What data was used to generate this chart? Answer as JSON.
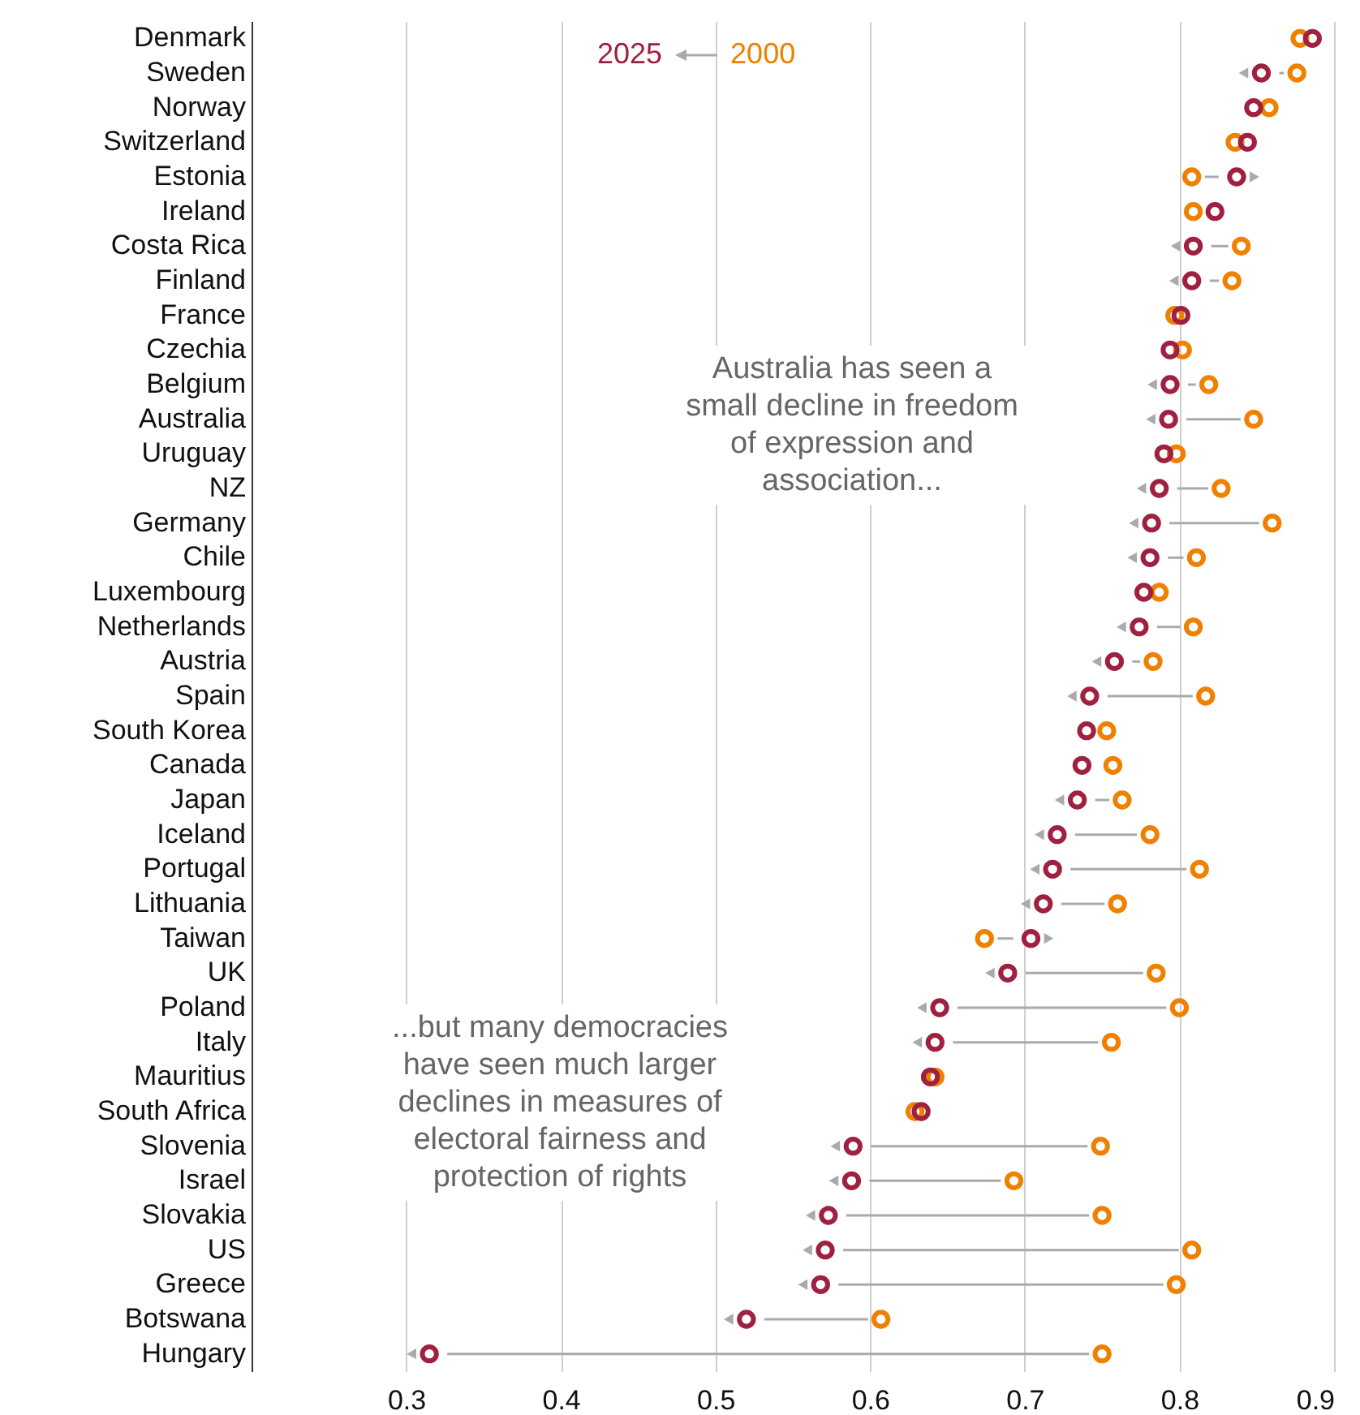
{
  "chart_data": {
    "type": "scatter",
    "orientation": "horizontal",
    "marker": "circle",
    "legend": "top",
    "grid": "x",
    "categories": [
      "Denmark",
      "Sweden",
      "Norway",
      "Switzerland",
      "Estonia",
      "Ireland",
      "Costa Rica",
      "Finland",
      "France",
      "Czechia",
      "Belgium",
      "Australia",
      "Uruguay",
      "NZ",
      "Germany",
      "Chile",
      "Luxembourg",
      "Netherlands",
      "Austria",
      "Spain",
      "South Korea",
      "Canada",
      "Japan",
      "Iceland",
      "Portugal",
      "Lithuania",
      "Taiwan",
      "UK",
      "Poland",
      "Italy",
      "Mauritius",
      "South Africa",
      "Slovenia",
      "Israel",
      "Slovakia",
      "US",
      "Greece",
      "Botswana",
      "Hungary"
    ],
    "series": [
      {
        "name": "2025",
        "color": "#a0203f",
        "values": [
          0.886,
          0.853,
          0.848,
          0.844,
          0.837,
          0.823,
          0.809,
          0.808,
          0.801,
          0.794,
          0.794,
          0.793,
          0.79,
          0.787,
          0.782,
          0.781,
          0.777,
          0.774,
          0.758,
          0.742,
          0.74,
          0.737,
          0.734,
          0.721,
          0.718,
          0.712,
          0.704,
          0.689,
          0.645,
          0.642,
          0.639,
          0.633,
          0.589,
          0.588,
          0.573,
          0.571,
          0.568,
          0.52,
          0.315
        ]
      },
      {
        "name": "2000",
        "color": "#f08000",
        "values": [
          0.878,
          0.876,
          0.858,
          0.836,
          0.808,
          0.809,
          0.84,
          0.834,
          0.797,
          0.802,
          0.819,
          0.848,
          0.798,
          0.827,
          0.86,
          0.811,
          0.787,
          0.809,
          0.783,
          0.817,
          0.753,
          0.757,
          0.763,
          0.781,
          0.813,
          0.76,
          0.674,
          0.785,
          0.8,
          0.756,
          0.642,
          0.629,
          0.749,
          0.693,
          0.75,
          0.808,
          0.798,
          0.607,
          0.75
        ]
      }
    ],
    "xlim": [
      0.2,
      0.9
    ],
    "xticks": [
      0.3,
      0.4,
      0.5,
      0.6,
      0.7,
      0.8,
      0.9
    ],
    "annotations": [
      "Australia has seen a small decline in freedom of expression and association...",
      "...but many democracies have seen much larger declines in measures of electoral fairness and protection of rights"
    ]
  }
}
